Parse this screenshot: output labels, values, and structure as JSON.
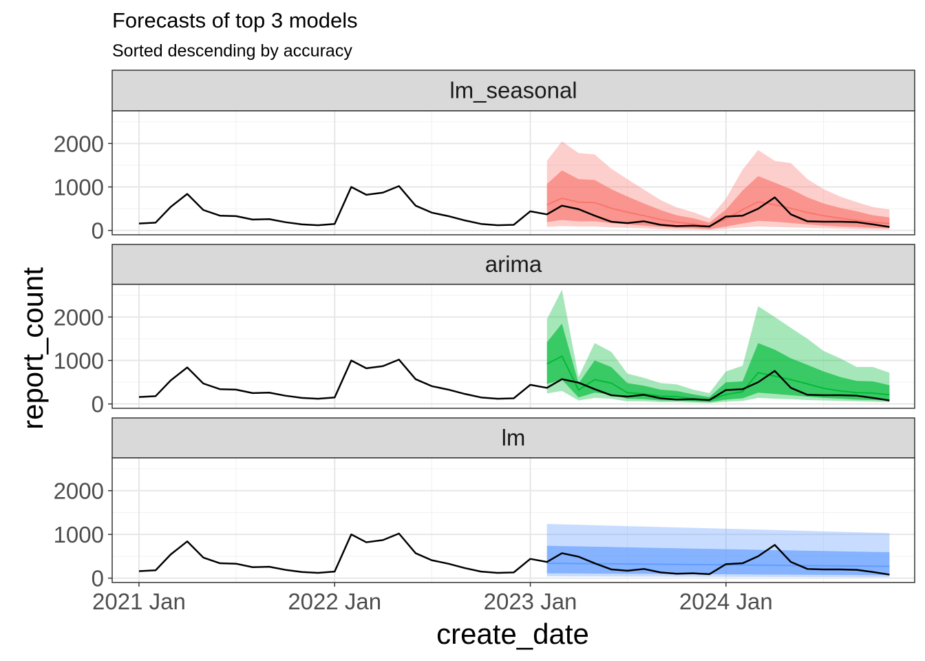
{
  "chart_data": {
    "type": "line",
    "title": "Forecasts of top 3 models",
    "subtitle": "Sorted descending by accuracy",
    "xlabel": "create_date",
    "ylabel": "report_count",
    "x_ticks": [
      "2021 Jan",
      "2022 Jan",
      "2023 Jan",
      "2024 Jan"
    ],
    "y_ticks": [
      0,
      1000,
      2000
    ],
    "xlim": [
      "2020-11-12",
      "2024-12-18"
    ],
    "ylim": [
      -100,
      2750
    ],
    "grid": true,
    "panel_order": [
      "lm_seasonal",
      "arima",
      "lm"
    ],
    "actual": {
      "dates": [
        "2021-01",
        "2021-02",
        "2021-03",
        "2021-04",
        "2021-05",
        "2021-06",
        "2021-07",
        "2021-08",
        "2021-09",
        "2021-10",
        "2021-11",
        "2021-12",
        "2022-01",
        "2022-02",
        "2022-03",
        "2022-04",
        "2022-05",
        "2022-06",
        "2022-07",
        "2022-08",
        "2022-09",
        "2022-10",
        "2022-11",
        "2022-12",
        "2023-01",
        "2023-02",
        "2023-03",
        "2023-04",
        "2023-05",
        "2023-06",
        "2023-07",
        "2023-08",
        "2023-09",
        "2023-10",
        "2023-11",
        "2023-12",
        "2024-01",
        "2024-02",
        "2024-03",
        "2024-04",
        "2024-05",
        "2024-06",
        "2024-07",
        "2024-08",
        "2024-09",
        "2024-10",
        "2024-11"
      ],
      "values": [
        160,
        180,
        540,
        840,
        470,
        340,
        330,
        250,
        260,
        190,
        140,
        120,
        150,
        1000,
        820,
        870,
        1020,
        570,
        410,
        330,
        230,
        150,
        120,
        130,
        440,
        370,
        570,
        490,
        340,
        200,
        170,
        210,
        130,
        100,
        110,
        90,
        320,
        340,
        500,
        760,
        370,
        210,
        200,
        200,
        190,
        140,
        80
      ]
    },
    "forecast_dates": [
      "2023-02",
      "2023-03",
      "2023-04",
      "2023-05",
      "2023-06",
      "2023-07",
      "2023-08",
      "2023-09",
      "2023-10",
      "2023-11",
      "2023-12",
      "2024-01",
      "2024-02",
      "2024-03",
      "2024-04",
      "2024-05",
      "2024-06",
      "2024-07",
      "2024-08",
      "2024-09",
      "2024-10",
      "2024-11"
    ],
    "series": [
      {
        "name": "lm_seasonal",
        "color": "#f8766d",
        "mean": [
          590,
          740,
          650,
          640,
          510,
          420,
          340,
          250,
          190,
          150,
          100,
          260,
          480,
          660,
          590,
          510,
          410,
          340,
          280,
          230,
          190,
          160
        ],
        "lo80": [
          190,
          240,
          210,
          210,
          170,
          140,
          110,
          80,
          60,
          50,
          30,
          90,
          160,
          220,
          200,
          170,
          140,
          110,
          90,
          80,
          60,
          50
        ],
        "hi80": [
          1070,
          1380,
          1180,
          1160,
          950,
          780,
          620,
          470,
          350,
          280,
          180,
          480,
          920,
          1250,
          1100,
          950,
          760,
          620,
          520,
          440,
          350,
          300
        ],
        "lo95": [
          80,
          100,
          90,
          90,
          70,
          60,
          50,
          30,
          20,
          20,
          10,
          40,
          70,
          90,
          80,
          70,
          60,
          50,
          40,
          30,
          20,
          20
        ],
        "hi95": [
          1600,
          2050,
          1780,
          1750,
          1420,
          1180,
          940,
          700,
          530,
          420,
          280,
          730,
          1400,
          1850,
          1600,
          1550,
          1180,
          950,
          780,
          650,
          540,
          480
        ]
      },
      {
        "name": "arima",
        "color": "#00ba38",
        "mean": [
          920,
          1100,
          320,
          560,
          480,
          260,
          230,
          180,
          170,
          120,
          90,
          220,
          280,
          720,
          640,
          560,
          460,
          360,
          300,
          260,
          250,
          210
        ],
        "lo80": [
          460,
          560,
          150,
          260,
          220,
          120,
          110,
          80,
          80,
          60,
          40,
          100,
          130,
          260,
          230,
          200,
          170,
          140,
          120,
          100,
          90,
          80
        ],
        "hi80": [
          1420,
          1850,
          470,
          1000,
          850,
          480,
          420,
          330,
          300,
          220,
          160,
          500,
          520,
          1400,
          1250,
          1050,
          900,
          750,
          620,
          530,
          520,
          430
        ],
        "lo95": [
          240,
          300,
          80,
          140,
          120,
          60,
          60,
          40,
          40,
          30,
          20,
          50,
          70,
          140,
          120,
          110,
          90,
          80,
          70,
          60,
          50,
          40
        ],
        "hi95": [
          1950,
          2630,
          620,
          1400,
          1200,
          700,
          600,
          480,
          450,
          330,
          250,
          750,
          880,
          2250,
          2000,
          1750,
          1500,
          1220,
          1050,
          850,
          850,
          720
        ]
      },
      {
        "name": "lm",
        "color": "#619cff",
        "mean": [
          340,
          337,
          333,
          330,
          327,
          323,
          320,
          317,
          313,
          310,
          307,
          303,
          300,
          297,
          293,
          290,
          287,
          283,
          280,
          277,
          273,
          270
        ],
        "lo80": [
          110,
          108,
          106,
          104,
          102,
          100,
          98,
          96,
          94,
          92,
          90,
          88,
          86,
          84,
          82,
          80,
          78,
          76,
          74,
          72,
          70,
          68
        ],
        "hi80": [
          740,
          733,
          726,
          719,
          712,
          705,
          698,
          690,
          683,
          676,
          669,
          662,
          655,
          648,
          641,
          634,
          627,
          620,
          613,
          606,
          599,
          592
        ],
        "lo95": [
          40,
          39,
          38,
          37,
          36,
          35,
          34,
          33,
          32,
          31,
          30,
          29,
          28,
          27,
          26,
          25,
          24,
          23,
          22,
          21,
          20,
          20
        ],
        "hi95": [
          1240,
          1230,
          1220,
          1210,
          1200,
          1190,
          1180,
          1170,
          1160,
          1150,
          1140,
          1130,
          1120,
          1110,
          1100,
          1090,
          1080,
          1070,
          1060,
          1050,
          1040,
          1030
        ]
      }
    ]
  }
}
